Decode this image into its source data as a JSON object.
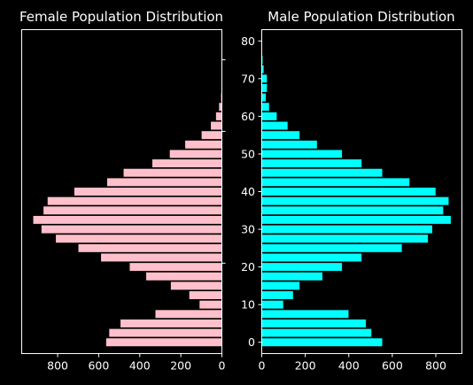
{
  "chart_data": [
    {
      "type": "bar",
      "orientation": "horizontal",
      "inverted_x": true,
      "title": "Female Population Distribution",
      "xlabel": "",
      "ylabel": "",
      "xlim": [
        975,
        0
      ],
      "ylim": [
        -3,
        83
      ],
      "xticks": [
        800,
        600,
        400,
        200,
        0
      ],
      "yticks": [
        21,
        56,
        75
      ],
      "y_ticklabels_shown": false,
      "bar_color": "#FFC0CB",
      "edge_color": "#000000",
      "ages": [
        0,
        2.5,
        5,
        7.5,
        10,
        12.5,
        15,
        17.5,
        20,
        22.5,
        25,
        27.5,
        30,
        32.5,
        35,
        37.5,
        40,
        42.5,
        45,
        47.5,
        50,
        52.5,
        55,
        57.5,
        60,
        62.5,
        65,
        67.5,
        70,
        72.5
      ],
      "values": [
        565,
        550,
        495,
        325,
        110,
        160,
        250,
        370,
        450,
        590,
        700,
        810,
        880,
        920,
        870,
        850,
        720,
        560,
        480,
        340,
        255,
        180,
        100,
        55,
        30,
        15,
        5,
        3,
        2,
        1
      ]
    },
    {
      "type": "bar",
      "orientation": "horizontal",
      "title": "Male Population Distribution",
      "xlabel": "",
      "ylabel": "",
      "xlim": [
        0,
        920
      ],
      "ylim": [
        -3,
        83
      ],
      "xticks": [
        0,
        200,
        400,
        600,
        800
      ],
      "yticks": [
        0,
        10,
        20,
        30,
        40,
        50,
        60,
        70,
        80
      ],
      "bar_color": "#00FFFF",
      "edge_color": "#000000",
      "ages": [
        0,
        2.5,
        5,
        7.5,
        10,
        12.5,
        15,
        17.5,
        20,
        22.5,
        25,
        27.5,
        30,
        32.5,
        35,
        37.5,
        40,
        42.5,
        45,
        47.5,
        50,
        52.5,
        55,
        57.5,
        60,
        62.5,
        65,
        67.5,
        70,
        72.5,
        75,
        77.5,
        80
      ],
      "values": [
        555,
        505,
        480,
        400,
        100,
        145,
        175,
        280,
        370,
        460,
        645,
        765,
        785,
        870,
        835,
        860,
        800,
        680,
        555,
        460,
        370,
        255,
        175,
        120,
        70,
        35,
        20,
        25,
        25,
        10,
        5,
        3,
        2
      ]
    }
  ]
}
